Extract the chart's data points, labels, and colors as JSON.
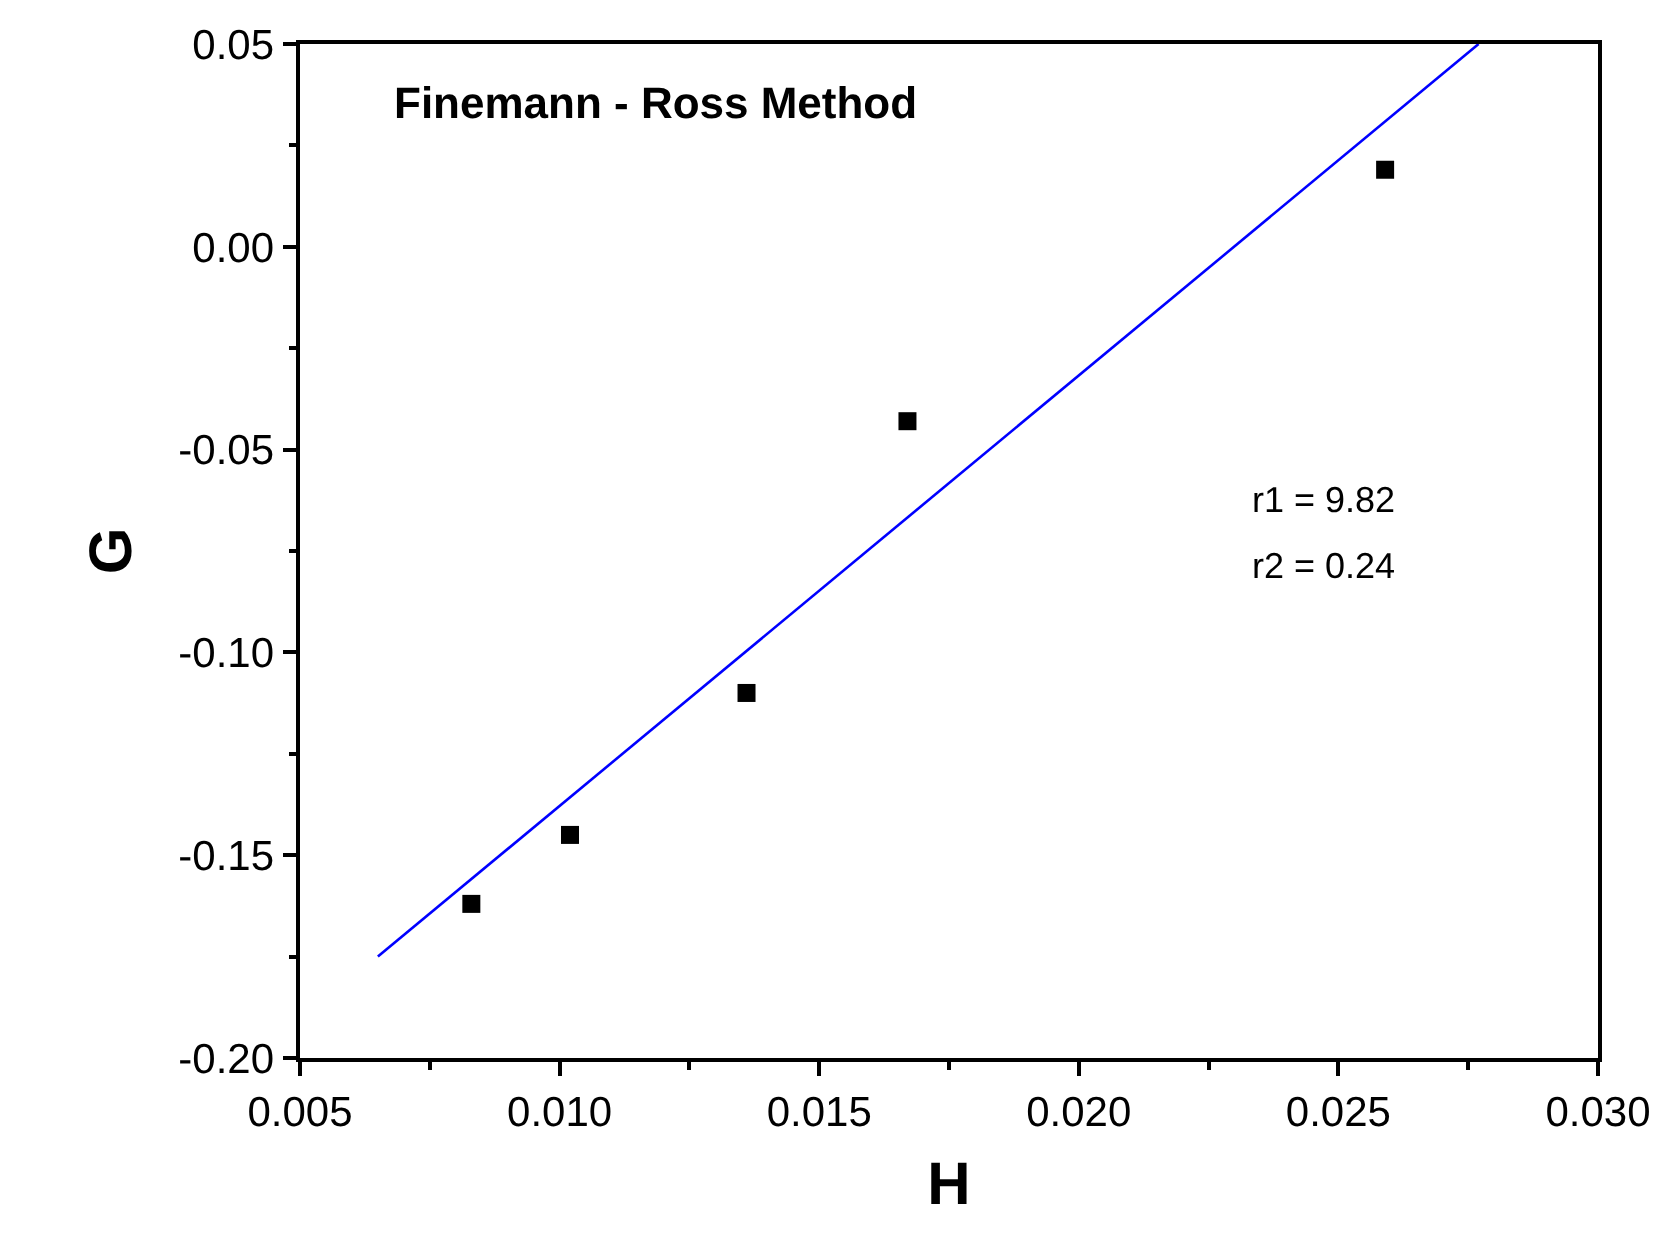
{
  "chart_data": {
    "type": "scatter",
    "title": "Finemann - Ross Method",
    "xlabel": "H",
    "ylabel": "G",
    "x": [
      0.0083,
      0.0102,
      0.0136,
      0.0167,
      0.0259
    ],
    "series": [
      {
        "color": "#000000",
        "marker": "square",
        "values": [
          -0.162,
          -0.145,
          -0.11,
          -0.043,
          0.019
        ]
      },
      {
        "type": "line",
        "color": "#0000ff",
        "x": [
          0.0065,
          0.0277
        ],
        "values": [
          -0.175,
          0.05
        ]
      }
    ],
    "xlim": [
      0.005,
      0.03
    ],
    "xticks": [
      {
        "value": 0.005,
        "label": "0.005"
      },
      {
        "value": 0.01,
        "label": "0.010"
      },
      {
        "value": 0.015,
        "label": "0.015"
      },
      {
        "value": 0.02,
        "label": "0.020"
      },
      {
        "value": 0.025,
        "label": "0.025"
      },
      {
        "value": 0.03,
        "label": "0.030"
      }
    ],
    "ylim": [
      -0.2,
      0.05
    ],
    "yticks": [
      {
        "value": -0.2,
        "label": "-0.20"
      },
      {
        "value": -0.15,
        "label": "-0.15"
      },
      {
        "value": -0.1,
        "label": "-0.10"
      },
      {
        "value": -0.05,
        "label": "-0.05"
      },
      {
        "value": 0,
        "label": "0.00"
      },
      {
        "value": 0.05,
        "label": "0.05"
      }
    ],
    "grid": false,
    "annotations": [
      "r1 = 9.82",
      "r2 = 0.24"
    ]
  }
}
